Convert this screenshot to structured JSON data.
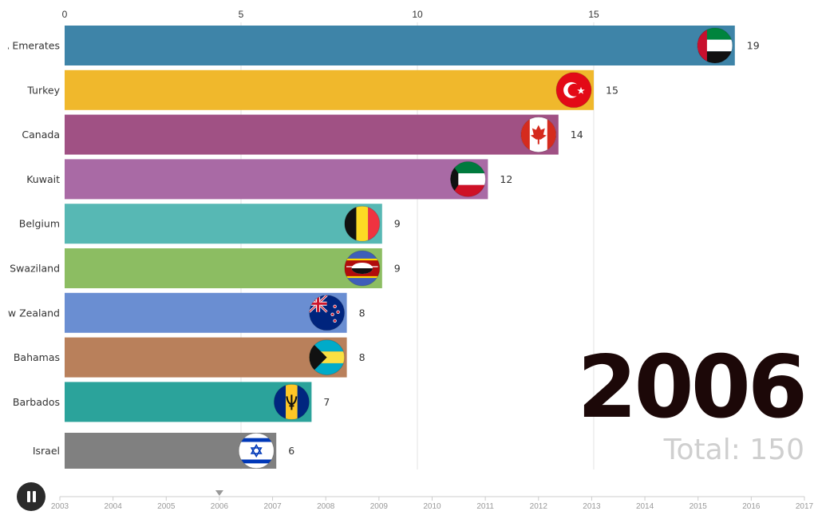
{
  "chart_data": {
    "type": "bar",
    "orientation": "horizontal",
    "categories": [
      "United Arab Emerates",
      "Turkey",
      "Canada",
      "Kuwait",
      "Belgium",
      "Swaziland",
      "New Zealand",
      "Bahamas",
      "Barbados",
      "Israel"
    ],
    "display_categories": [
      "A Emerates",
      "Turkey",
      "Canada",
      "Kuwait",
      "Belgium",
      "Swaziland",
      "ew Zealand",
      "Bahamas",
      "Barbados",
      "Israel"
    ],
    "values": [
      19,
      15,
      14,
      12,
      9,
      9,
      8,
      8,
      7,
      6
    ],
    "value_labels": [
      "19",
      "15",
      "14",
      "12",
      "9",
      "9",
      "8",
      "8",
      "7",
      "6"
    ],
    "colors": [
      "#3e84a8",
      "#f0b82c",
      "#a05184",
      "#a96aa5",
      "#57b8b4",
      "#8cbd62",
      "#6a8ed2",
      "#b9805b",
      "#2ba39b",
      "#808080"
    ],
    "xticks": [
      "0",
      "5",
      "10",
      "15"
    ],
    "xtick_values": [
      0,
      5,
      10,
      15
    ],
    "xlim": [
      0,
      18.8
    ],
    "title": "",
    "xlabel": "",
    "ylabel": "",
    "grid": true
  },
  "year": "2006",
  "total": "Total: 150",
  "timeline": {
    "years": [
      "2003",
      "2004",
      "2005",
      "2006",
      "2007",
      "2008",
      "2009",
      "2010",
      "2011",
      "2012",
      "2013",
      "2014",
      "2015",
      "2016",
      "2017"
    ],
    "current_index": 3
  },
  "controls": {
    "pause_icon": "pause-icon"
  }
}
